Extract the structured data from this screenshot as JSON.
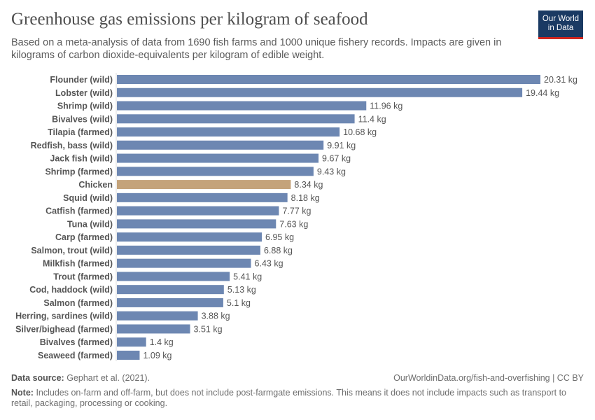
{
  "header": {
    "title": "Greenhouse gas emissions per kilogram of seafood",
    "subtitle": "Based on a meta-analysis of data from 1690 fish farms and 1000 unique fishery records. Impacts are given in kilograms of carbon dioxide-equivalents per kilogram of edible weight.",
    "logo": "Our World in Data"
  },
  "chart_data": {
    "type": "bar",
    "orientation": "horizontal",
    "unit": "kg",
    "categories": [
      "Flounder (wild)",
      "Lobster (wild)",
      "Shrimp (wild)",
      "Bivalves (wild)",
      "Tilapia (farmed)",
      "Redfish, bass (wild)",
      "Jack fish (wild)",
      "Shrimp (farmed)",
      "Chicken",
      "Squid (wild)",
      "Catfish (farmed)",
      "Tuna (wild)",
      "Carp (farmed)",
      "Salmon, trout (wild)",
      "Milkfish (farmed)",
      "Trout (farmed)",
      "Cod, haddock (wild)",
      "Salmon (farmed)",
      "Herring, sardines (wild)",
      "Silver/bighead (farmed)",
      "Bivalves (farmed)",
      "Seaweed (farmed)"
    ],
    "values": [
      20.31,
      19.44,
      11.96,
      11.4,
      10.68,
      9.91,
      9.67,
      9.43,
      8.34,
      8.18,
      7.77,
      7.63,
      6.95,
      6.88,
      6.43,
      5.41,
      5.13,
      5.1,
      3.88,
      3.51,
      1.4,
      1.09
    ],
    "value_labels": [
      "20.31 kg",
      "19.44 kg",
      "11.96 kg",
      "11.4 kg",
      "10.68 kg",
      "9.91 kg",
      "9.67 kg",
      "9.43 kg",
      "8.34 kg",
      "8.18 kg",
      "7.77 kg",
      "7.63 kg",
      "6.95 kg",
      "6.88 kg",
      "6.43 kg",
      "5.41 kg",
      "5.13 kg",
      "5.1 kg",
      "3.88 kg",
      "3.51 kg",
      "1.4 kg",
      "1.09 kg"
    ],
    "highlight": "Chicken",
    "colors": {
      "default": "#6d87b2",
      "highlight": "#c4a37a"
    }
  },
  "footer": {
    "source_label": "Data source:",
    "source": "Gephart et al. (2021).",
    "url": "OurWorldinData.org/fish-and-overfishing | CC BY",
    "note_label": "Note:",
    "note": "Includes on-farm and off-farm, but does not include post-farmgate emissions. This means it does not include impacts such as transport to retail, packaging, processing or cooking."
  }
}
